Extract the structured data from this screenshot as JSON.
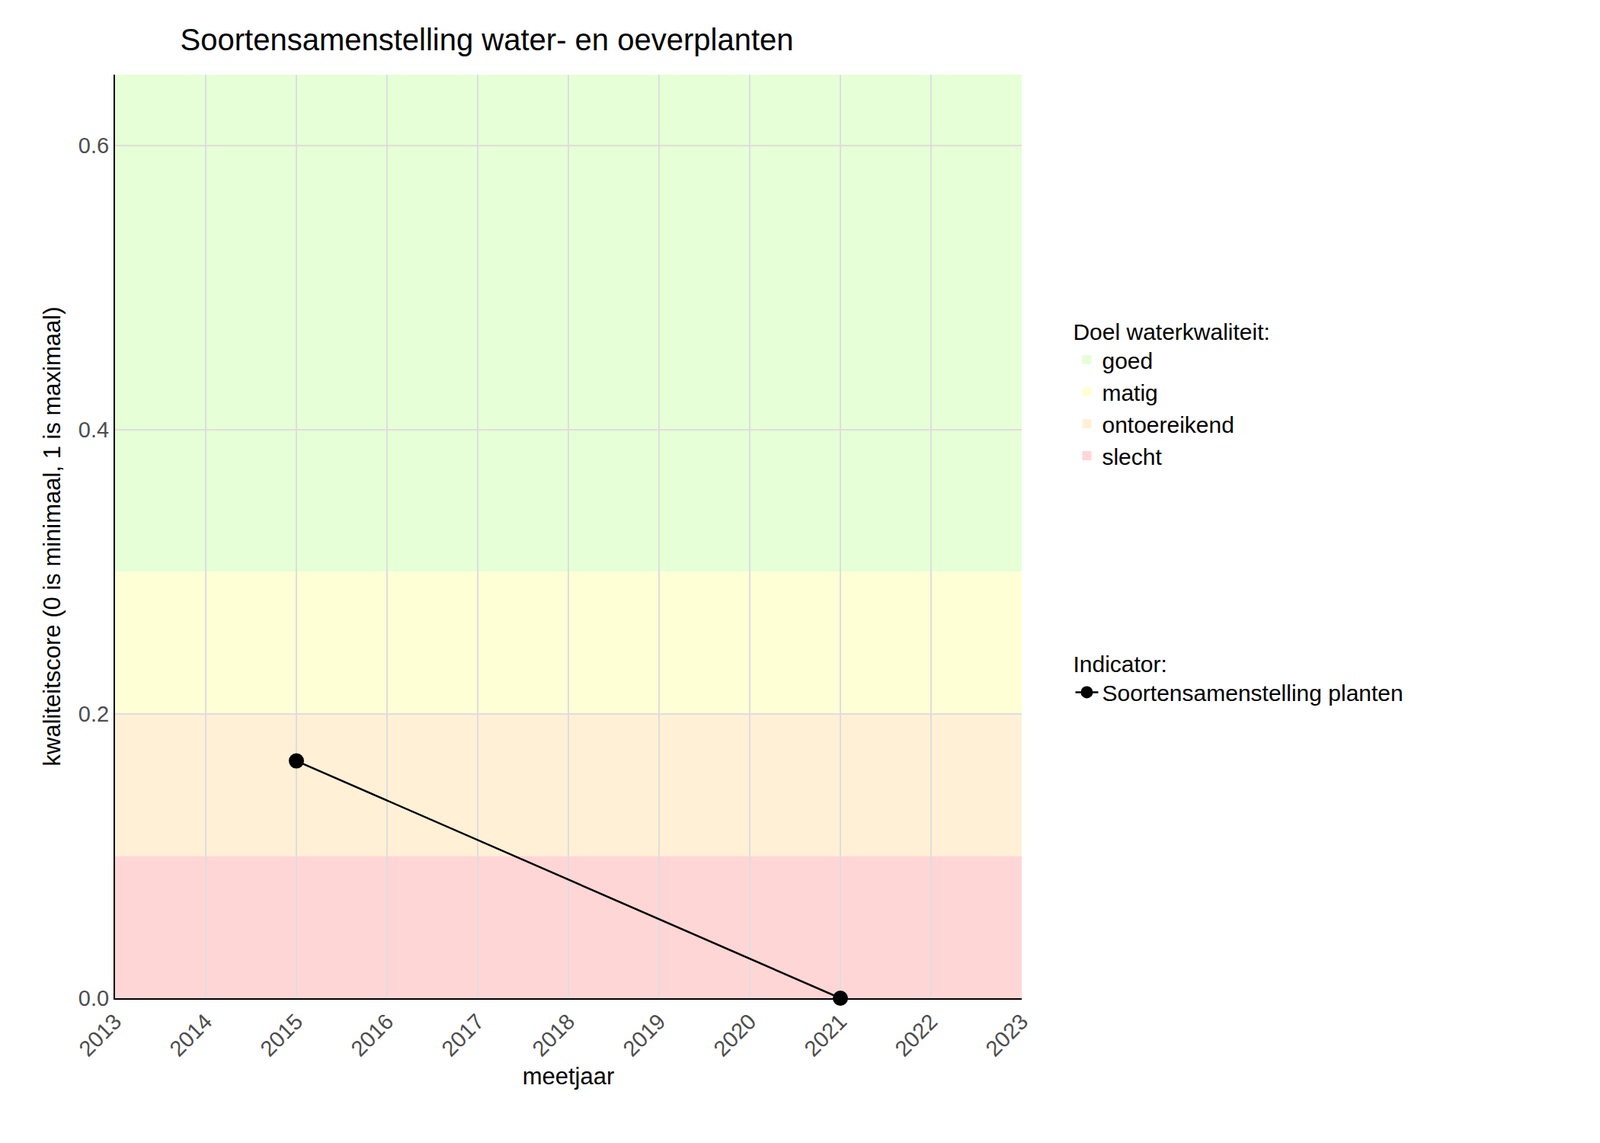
{
  "chart_data": {
    "type": "line",
    "title": "Soortensamenstelling water- en oeverplanten",
    "x_label": "meetjaar",
    "y_label": "kwaliteitscore (0 is minimaal, 1 is maximaal)",
    "xlim": [
      2013,
      2023
    ],
    "xticks": [
      2013,
      2014,
      2015,
      2016,
      2017,
      2018,
      2019,
      2020,
      2021,
      2022,
      2023
    ],
    "ylim": [
      0,
      0.65
    ],
    "yticks": [
      {
        "value": 0,
        "label": "0.0"
      },
      {
        "value": 0.2,
        "label": "0.2"
      },
      {
        "value": 0.4,
        "label": "0.4"
      },
      {
        "value": 0.6,
        "label": "0.6"
      }
    ],
    "grid": true,
    "legend": "right",
    "bands_title": "Doel waterkwaliteit:",
    "bands": [
      {
        "name": "goed",
        "color": "#e6ffd6",
        "from": 0.3,
        "to": 0.65
      },
      {
        "name": "matig",
        "color": "#ffffd6",
        "from": 0.2,
        "to": 0.3
      },
      {
        "name": "ontoereikend",
        "color": "#fff0d6",
        "from": 0.1,
        "to": 0.2
      },
      {
        "name": "slecht",
        "color": "#ffd6d6",
        "from": 0,
        "to": 0.1
      }
    ],
    "series_title": "Indicator:",
    "x": [
      2015,
      2021
    ],
    "series": [
      {
        "name": "Soortensamenstelling planten",
        "color": "#000000",
        "marker": "circle",
        "values": [
          0.167,
          0
        ]
      }
    ]
  }
}
